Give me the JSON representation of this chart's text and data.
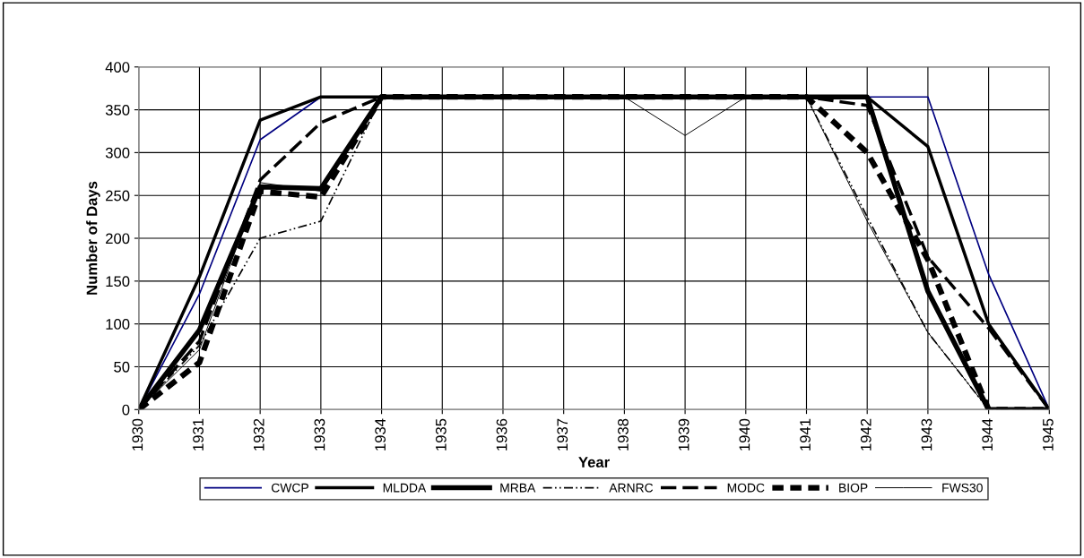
{
  "chart_data": {
    "type": "line",
    "xlabel": "Year",
    "ylabel": "Number of Days",
    "categories": [
      "1930",
      "1931",
      "1932",
      "1933",
      "1934",
      "1935",
      "1936",
      "1937",
      "1938",
      "1939",
      "1940",
      "1941",
      "1942",
      "1943",
      "1944",
      "1945"
    ],
    "ylim": [
      0,
      400
    ],
    "yticks": [
      0,
      50,
      100,
      150,
      200,
      250,
      300,
      350,
      400
    ],
    "grid": true,
    "legend": "bottom",
    "marker": "none",
    "series": [
      {
        "name": "CWCP",
        "color": "#000080",
        "values": [
          0,
          135,
          315,
          365,
          365,
          365,
          365,
          365,
          365,
          365,
          365,
          365,
          365,
          365,
          158,
          0
        ],
        "line_style": "solid"
      },
      {
        "name": "MLDDA",
        "color": "#000000",
        "values": [
          0,
          155,
          338,
          365,
          365,
          365,
          365,
          365,
          365,
          365,
          365,
          365,
          365,
          307,
          100,
          0
        ],
        "line_style": "solid"
      },
      {
        "name": "MRBA",
        "color": "#000000",
        "values": [
          0,
          93,
          260,
          258,
          365,
          365,
          365,
          365,
          365,
          365,
          365,
          365,
          365,
          138,
          0,
          0
        ],
        "line_style": "solid"
      },
      {
        "name": "ARNRC",
        "color": "#000000",
        "values": [
          0,
          75,
          200,
          220,
          365,
          365,
          365,
          365,
          365,
          365,
          365,
          365,
          225,
          90,
          0,
          0
        ],
        "line_style": "dashed"
      },
      {
        "name": "MODC",
        "color": "#000000",
        "values": [
          0,
          80,
          268,
          335,
          365,
          365,
          365,
          365,
          365,
          365,
          365,
          365,
          355,
          178,
          95,
          0
        ],
        "line_style": "dashed"
      },
      {
        "name": "BIOP",
        "color": "#000000",
        "values": [
          0,
          55,
          255,
          248,
          365,
          365,
          365,
          365,
          365,
          365,
          365,
          365,
          300,
          175,
          0,
          0
        ],
        "line_style": "dashed"
      },
      {
        "name": "FWS30",
        "color": "#000000",
        "values": [
          0,
          70,
          265,
          255,
          365,
          365,
          365,
          365,
          365,
          320,
          365,
          365,
          220,
          90,
          0,
          0
        ],
        "line_style": "solid"
      }
    ]
  }
}
